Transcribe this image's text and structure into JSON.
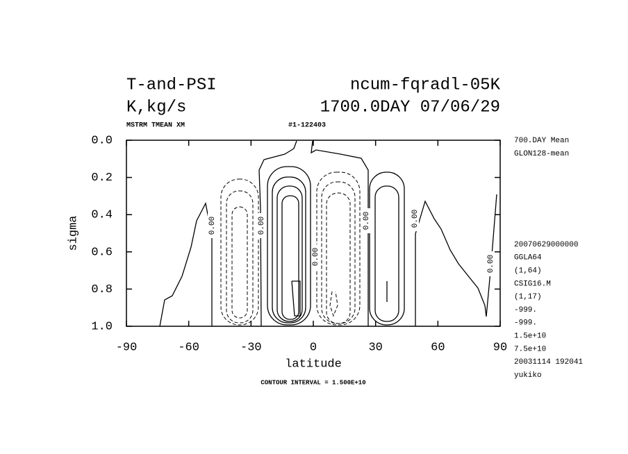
{
  "chart_data": {
    "type": "contour",
    "title_left": "T-and-PSI",
    "title_right": "ncum-fqradl-05K",
    "subtitle_left": "K,kg/s",
    "subtitle_right": "1700.0DAY 07/06/29",
    "header_left": "MSTRM TMEAN XM",
    "header_right": "#1-122403",
    "xlabel": "latitude",
    "ylabel": "sigma",
    "xlim": [
      -90,
      90
    ],
    "xticks": [
      -90,
      -60,
      -30,
      0,
      30,
      60,
      90
    ],
    "ylim": [
      0,
      1
    ],
    "yreverse": true,
    "yticks": [
      {
        "value": 0,
        "label": "0.0"
      },
      0.2,
      0.4,
      0.6,
      0.8,
      {
        "value": 1,
        "label": "1.0"
      }
    ],
    "contour_labels": [
      "0.00",
      "0.00",
      "0.00",
      "0.00",
      "0.00",
      "0.00"
    ],
    "info_top": [
      "700.DAY Mean",
      "GLON128-mean"
    ],
    "info_bottom": [
      "20070629000000",
      "GGLA64",
      "(1,64)",
      "CSIG16.M",
      "(1,17)",
      "-999.",
      "-999.",
      "1.5e+10",
      "7.5e+10",
      "20031114 192041",
      "yukiko"
    ],
    "footer": "CONTOUR INTERVAL = 1.500E+10"
  }
}
